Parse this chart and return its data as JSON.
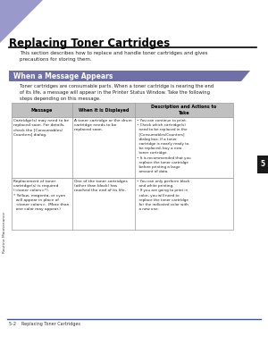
{
  "title": "Replacing Toner Cartridges",
  "subtitle": "This section describes how to replace and handle toner cartridges and gives\nprecautions for storing them.",
  "section_header": "When a Message Appears",
  "section_body": "Toner cartridges are consumable parts. When a toner cartridge is nearing the end\nof its life, a message will appear in the Printer Status Window. Take the following\nsteps depending on this message.",
  "table_headers": [
    "Message",
    "When it is Displayed",
    "Description and Actions to\nTake"
  ],
  "row1_col1": "Cartridge(s) may need to be\nreplaced soon. For details,\ncheck the [Consumables/\nCounters] dialog.",
  "row1_col2": "A toner cartridge or the drum\ncartridge needs to be\nreplaced soon.",
  "row1_col3": "• You can continue to print.\n• Check which cartridge(s)\n  need to be replaced in the\n  [Consumables/Counters]\n  dialog box. If a toner\n  cartridge is nearly ready to\n  be replaced, buy a new\n  toner cartridge.\n• It is recommended that you\n  replace the toner cartridge\n  before printing a large\n  amount of data.",
  "row2_col1": "Replacement of toner\ncartridge(s) is required\n(<toner colors>*).\n* Yellow, magenta, or cyan\n  will appear in place of\n  <toner colors>. (More than\n  one color may appear.)",
  "row2_col2": "One of the toner cartridges\n(other than black) has\nreached the end of its life.",
  "row2_col3": "• You can only perform black\n  and white printing.\n• If you are going to print in\n  color, you will need to\n  replace the toner cartridge\n  for the indicated color with\n  a new one.",
  "footer_line": "5-2    Replacing Toner Cartridges",
  "chapter_num": "5",
  "side_label": "Routine Maintenance",
  "bg_color": "#ffffff",
  "header_bg": "#7070a8",
  "table_header_bg": "#c0c0c0",
  "title_color": "#000000",
  "section_header_text_color": "#ffffff",
  "footer_line_color": "#3355aa",
  "triangle_color": "#9999cc",
  "tab_color": "#1a1a1a"
}
